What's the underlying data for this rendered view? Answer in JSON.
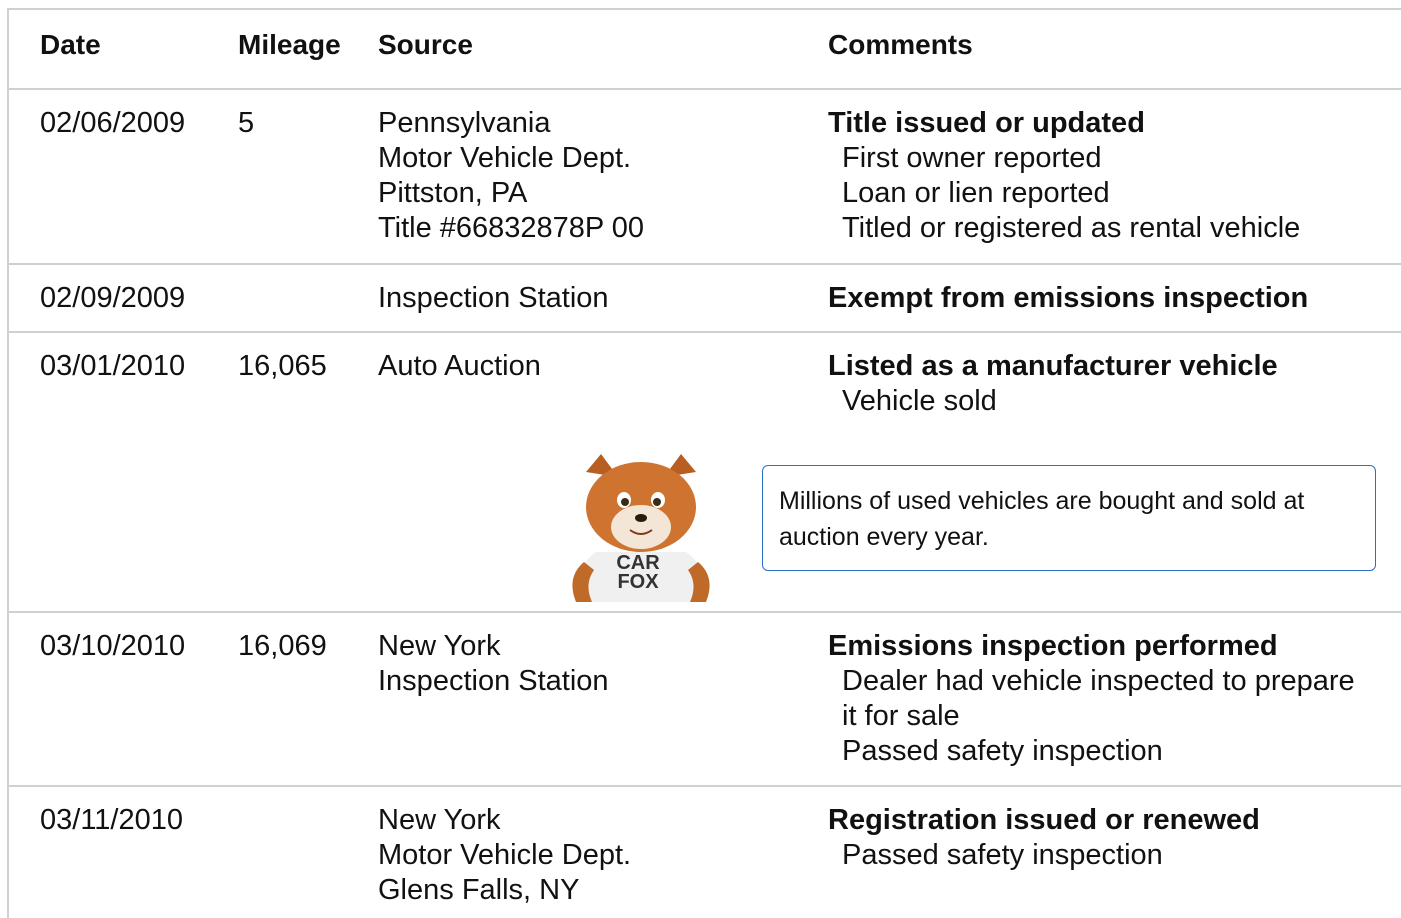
{
  "table": {
    "headers": [
      "Date",
      "Mileage",
      "Source",
      "Comments"
    ],
    "rows": [
      {
        "date": "02/06/2009",
        "mileage": "5",
        "source": [
          "Pennsylvania",
          "Motor Vehicle Dept.",
          "Pittston, PA",
          "Title #66832878P 00"
        ],
        "comments": {
          "title": "Title issued or updated",
          "items": [
            "First owner reported",
            "Loan or lien reported",
            "Titled or registered as rental vehicle"
          ]
        }
      },
      {
        "date": "02/09/2009",
        "source": [
          "Inspection Station"
        ],
        "comments": {
          "title": "Exempt from emissions inspection",
          "items": []
        }
      },
      {
        "date": "03/01/2010",
        "mileage": "16,065",
        "source": [
          "Auto Auction"
        ],
        "comments": {
          "title": "Listed as a manufacturer vehicle",
          "items": [
            "Vehicle sold"
          ]
        }
      },
      {
        "date": "03/10/2010",
        "mileage": "16,069",
        "source": [
          "New York",
          "Inspection Station"
        ],
        "comments": {
          "title": "Emissions inspection performed",
          "items": [
            "Dealer had vehicle inspected to prepare it for sale",
            "Passed safety inspection"
          ]
        }
      },
      {
        "date": "03/11/2010",
        "source": [
          "New York",
          "Motor Vehicle Dept.",
          "Glens Falls, NY"
        ],
        "comments": {
          "title": "Registration issued or renewed",
          "items": [
            "Passed safety inspection"
          ]
        }
      }
    ]
  },
  "callout": {
    "text": "Millions of used vehicles are bought and sold at auction every year.",
    "mascot_shirt": [
      "CAR",
      "FOX"
    ]
  }
}
